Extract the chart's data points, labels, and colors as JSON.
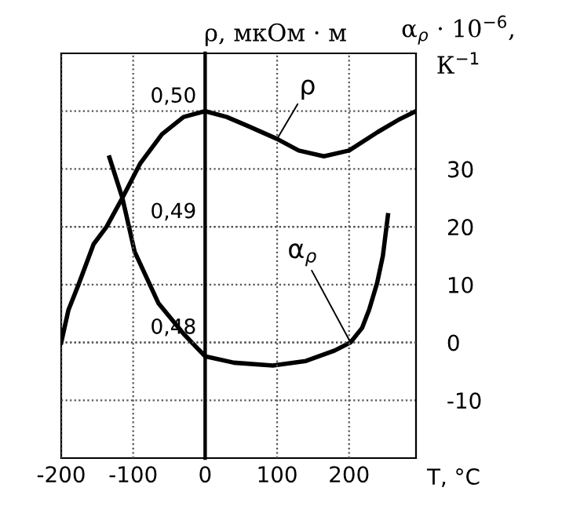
{
  "chart_data": {
    "type": "line",
    "ylabel": "ρ, мкОм · м",
    "y2label": "α$_{ρ}$ · 10$^{−6}$,\nК$^{−1}$",
    "xlabel": "T, °C",
    "xlim": [
      -200,
      293
    ],
    "xticks": [
      -200,
      -100,
      0,
      100,
      200
    ],
    "ylim": [
      0.47,
      0.505
    ],
    "yticks": [
      {
        "value": 0.48,
        "label": "0,48"
      },
      {
        "value": 0.49,
        "label": "0,49"
      },
      {
        "value": 0.5,
        "label": "0,50"
      }
    ],
    "y2lim": [
      -20,
      50
    ],
    "y2ticks": [
      -10,
      0,
      10,
      20,
      30
    ],
    "grid": true,
    "line_style": "solid",
    "marker": "none",
    "series": [
      {
        "color": "#000000",
        "x": [
          -200,
          -190,
          -176,
          -155,
          -137,
          -115,
          -90,
          -60,
          -30,
          0,
          30,
          60,
          100,
          130,
          165,
          200,
          240,
          270,
          293
        ],
        "values": [
          0.48,
          0.4828,
          0.485,
          0.4885,
          0.49,
          0.4925,
          0.4955,
          0.498,
          0.4995,
          0.5,
          0.4995,
          0.4987,
          0.4976,
          0.4966,
          0.4961,
          0.4966,
          0.4982,
          0.4993,
          0.5
        ]
      },
      {
        "color": "#000000",
        "axis": "y2",
        "x": [
          -133,
          -115,
          -98,
          -65,
          -30,
          0,
          40,
          94,
          140,
          180,
          202,
          218,
          228,
          239,
          247,
          254
        ],
        "values": [
          32,
          25,
          15.7,
          6.8,
          1.5,
          -2.4,
          -3.5,
          -4,
          -3.2,
          -1.4,
          0,
          2.5,
          5.7,
          10.3,
          15,
          22
        ]
      }
    ],
    "annotations": [
      {
        "text": "ρ",
        "x": 100,
        "y": 0.4976
      },
      {
        "text": "α$_{ρ}$",
        "x": 202,
        "y": 0.48
      }
    ]
  }
}
